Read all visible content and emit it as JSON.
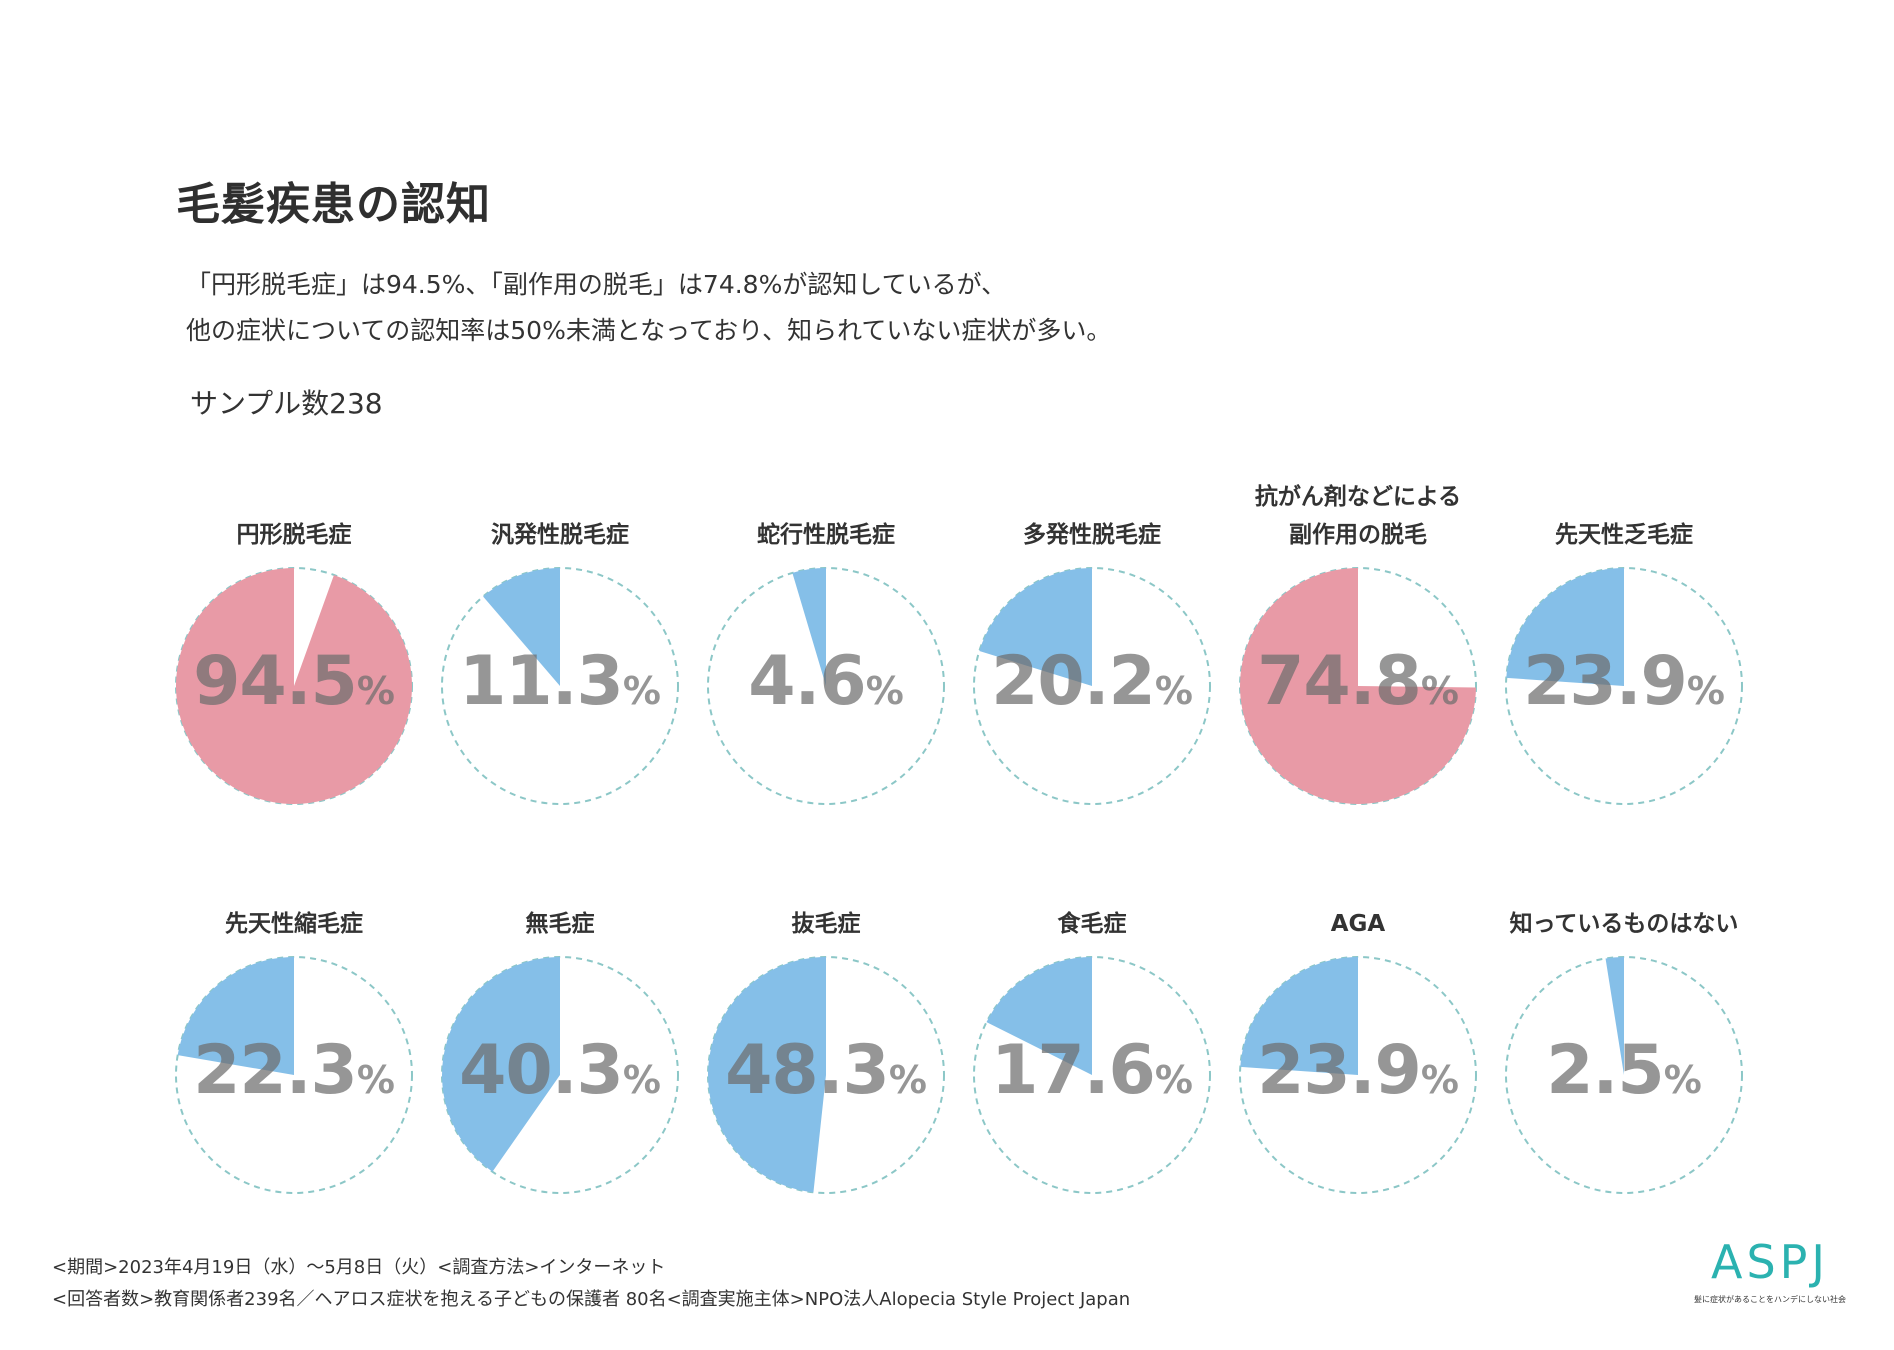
{
  "title": "毛髪疾患の認知",
  "description": [
    "「円形脱毛症」は94.5%、「副作用の脱毛」は74.8%が認知しているが、",
    "他の症状についての認知率は50%未満となっており、知られていない症状が多い。"
  ],
  "sample": "サンプル数238",
  "colors": {
    "pink": "#e89aa6",
    "blue": "#85bfe8",
    "dash": "#8cc7c7"
  },
  "chart_data": {
    "type": "pie",
    "title": "毛髪疾患の認知",
    "unit": "%",
    "series": [
      {
        "label": [
          "円形脱毛症"
        ],
        "value": 94.5,
        "value_text": "94.5",
        "color": "pink"
      },
      {
        "label": [
          "汎発性脱毛症"
        ],
        "value": 11.3,
        "value_text": "11.3",
        "color": "blue"
      },
      {
        "label": [
          "蛇行性脱毛症"
        ],
        "value": 4.6,
        "value_text": "4.6",
        "color": "blue"
      },
      {
        "label": [
          "多発性脱毛症"
        ],
        "value": 20.2,
        "value_text": "20.2",
        "color": "blue"
      },
      {
        "label": [
          "抗がん剤などによる",
          "副作用の脱毛"
        ],
        "value": 74.8,
        "value_text": "74.8",
        "color": "pink"
      },
      {
        "label": [
          "先天性乏毛症"
        ],
        "value": 23.9,
        "value_text": "23.9",
        "color": "blue"
      },
      {
        "label": [
          "先天性縮毛症"
        ],
        "value": 22.3,
        "value_text": "22.3",
        "color": "blue"
      },
      {
        "label": [
          "無毛症"
        ],
        "value": 40.3,
        "value_text": "40.3",
        "color": "blue"
      },
      {
        "label": [
          "抜毛症"
        ],
        "value": 48.3,
        "value_text": "48.3",
        "color": "blue"
      },
      {
        "label": [
          "食毛症"
        ],
        "value": 17.6,
        "value_text": "17.6",
        "color": "blue"
      },
      {
        "label": [
          "AGA"
        ],
        "value": 23.9,
        "value_text": "23.9",
        "color": "blue"
      },
      {
        "label": [
          "知っているものはない"
        ],
        "value": 2.5,
        "value_text": "2.5",
        "color": "blue"
      }
    ]
  },
  "footer": [
    "<期間>2023年4月19日（水）～5月8日（火）<調査方法>インターネット",
    "<回答者数>教育関係者239名／ヘアロス症状を抱える子どもの保護者 80名<調査実施主体>NPO法人Alopecia Style Project Japan"
  ],
  "logo": {
    "mark": "ASPJ",
    "tagline": "髪に症状があることをハンデにしない社会"
  }
}
